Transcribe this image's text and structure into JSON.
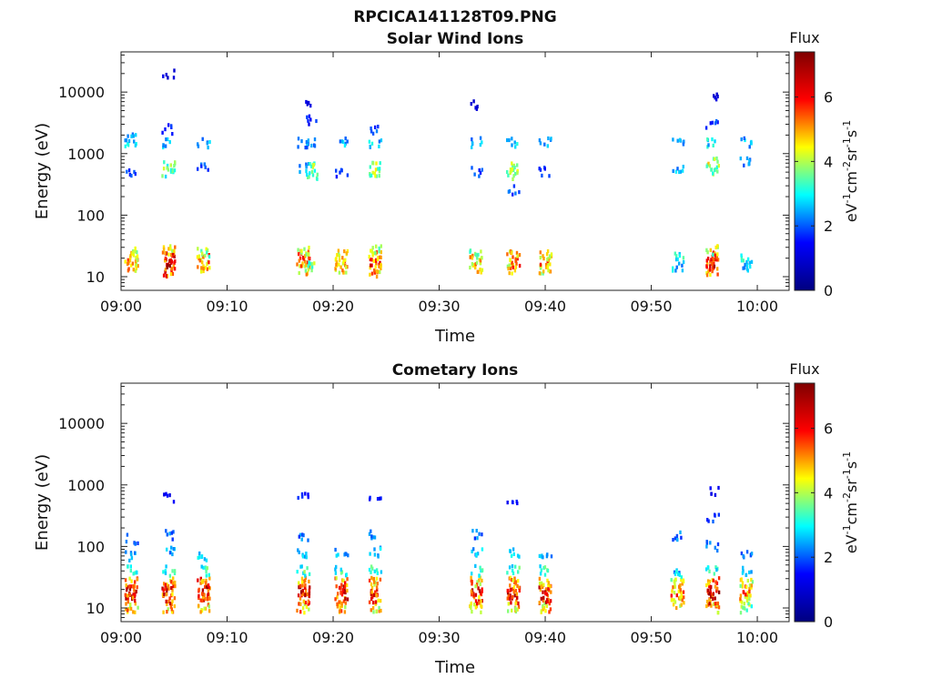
{
  "figure": {
    "filename": "RPCICA141128T09.PNG"
  },
  "colormap": {
    "type": "jet",
    "stops": [
      "#00007f",
      "#0000ff",
      "#00ffff",
      "#ffff00",
      "#ff0000",
      "#7f0000"
    ]
  },
  "chart_data": [
    {
      "type": "heatmap",
      "title": "Solar Wind Ions",
      "xlabel": "Time",
      "ylabel": "Energy (eV)",
      "y_scale": "log",
      "xlim": [
        "09:00",
        "10:03"
      ],
      "ylim": [
        6,
        45000
      ],
      "x_ticks": [
        "09:00",
        "09:10",
        "09:20",
        "09:30",
        "09:40",
        "09:50",
        "10:00"
      ],
      "y_ticks": [
        10,
        100,
        1000,
        10000
      ],
      "y_tick_labels": [
        "10",
        "100",
        "1000",
        "10000"
      ],
      "colorbar": {
        "title": "Flux",
        "label": "eV-1cm-2sr-1s-1",
        "range": [
          0,
          7.4
        ],
        "ticks": [
          0,
          2,
          4,
          6
        ],
        "tick_labels": [
          "0",
          "2",
          "4",
          "6"
        ]
      },
      "bursts": [
        {
          "t_min": 1.0,
          "e_low": [
            {
              "e": 14,
              "v": 5.4
            },
            {
              "e": 19,
              "v": 5.6
            },
            {
              "e": 24,
              "v": 5.0
            }
          ],
          "e_high": [
            {
              "e": 1400,
              "v": 3.2
            },
            {
              "e": 1800,
              "v": 2.6
            },
            {
              "e": 500,
              "v": 2.0
            }
          ]
        },
        {
          "t_min": 4.5,
          "e_low": [
            {
              "e": 12,
              "v": 6.2
            },
            {
              "e": 16,
              "v": 7.0
            },
            {
              "e": 21,
              "v": 6.6
            },
            {
              "e": 27,
              "v": 5.4
            }
          ],
          "e_high": [
            {
              "e": 500,
              "v": 3.6
            },
            {
              "e": 650,
              "v": 4.0
            },
            {
              "e": 1500,
              "v": 3.0
            },
            {
              "e": 2500,
              "v": 2.0
            },
            {
              "e": 20000,
              "v": 1.2
            }
          ]
        },
        {
          "t_min": 7.8,
          "e_low": [
            {
              "e": 14,
              "v": 5.2
            },
            {
              "e": 19,
              "v": 5.6
            },
            {
              "e": 24,
              "v": 4.6
            }
          ],
          "e_high": [
            {
              "e": 1500,
              "v": 2.8
            },
            {
              "e": 600,
              "v": 2.2
            }
          ]
        },
        {
          "t_min": 17.2,
          "e_low": [
            {
              "e": 13,
              "v": 5.2
            },
            {
              "e": 17,
              "v": 6.0
            },
            {
              "e": 22,
              "v": 5.6
            },
            {
              "e": 27,
              "v": 4.4
            }
          ],
          "e_high": [
            {
              "e": 1500,
              "v": 2.8
            },
            {
              "e": 600,
              "v": 2.4
            }
          ]
        },
        {
          "t_min": 18.0,
          "e_low": [
            {
              "e": 15,
              "v": 4.2
            }
          ],
          "e_high": [
            {
              "e": 450,
              "v": 4.0
            },
            {
              "e": 600,
              "v": 4.2
            },
            {
              "e": 1500,
              "v": 2.6
            },
            {
              "e": 3500,
              "v": 1.8
            },
            {
              "e": 6500,
              "v": 1.2
            }
          ]
        },
        {
          "t_min": 20.8,
          "e_low": [
            {
              "e": 13,
              "v": 5.2
            },
            {
              "e": 17,
              "v": 5.8
            },
            {
              "e": 22,
              "v": 5.0
            }
          ],
          "e_high": [
            {
              "e": 1500,
              "v": 2.8
            },
            {
              "e": 500,
              "v": 2.0
            }
          ]
        },
        {
          "t_min": 24.0,
          "e_low": [
            {
              "e": 12,
              "v": 5.6
            },
            {
              "e": 16,
              "v": 6.4
            },
            {
              "e": 21,
              "v": 6.0
            },
            {
              "e": 27,
              "v": 4.6
            }
          ],
          "e_high": [
            {
              "e": 450,
              "v": 4.2
            },
            {
              "e": 600,
              "v": 4.4
            },
            {
              "e": 1500,
              "v": 3.0
            },
            {
              "e": 2500,
              "v": 2.2
            }
          ]
        },
        {
          "t_min": 33.5,
          "e_low": [
            {
              "e": 14,
              "v": 5.0
            },
            {
              "e": 19,
              "v": 5.4
            },
            {
              "e": 24,
              "v": 4.6
            }
          ],
          "e_high": [
            {
              "e": 1500,
              "v": 2.8
            },
            {
              "e": 500,
              "v": 2.0
            },
            {
              "e": 6000,
              "v": 1.2
            }
          ]
        },
        {
          "t_min": 37.0,
          "e_low": [
            {
              "e": 13,
              "v": 5.2
            },
            {
              "e": 17,
              "v": 6.2
            },
            {
              "e": 22,
              "v": 5.4
            }
          ],
          "e_high": [
            {
              "e": 450,
              "v": 4.2
            },
            {
              "e": 600,
              "v": 4.4
            },
            {
              "e": 1500,
              "v": 3.0
            },
            {
              "e": 250,
              "v": 2.2
            }
          ]
        },
        {
          "t_min": 40.0,
          "e_low": [
            {
              "e": 13,
              "v": 5.0
            },
            {
              "e": 17,
              "v": 5.8
            },
            {
              "e": 22,
              "v": 5.0
            }
          ],
          "e_high": [
            {
              "e": 1500,
              "v": 3.0
            },
            {
              "e": 500,
              "v": 2.0
            }
          ]
        },
        {
          "t_min": 52.5,
          "e_low": [
            {
              "e": 15,
              "v": 3.0
            },
            {
              "e": 20,
              "v": 3.4
            }
          ],
          "e_high": [
            {
              "e": 1500,
              "v": 3.0
            },
            {
              "e": 600,
              "v": 2.8
            }
          ]
        },
        {
          "t_min": 55.8,
          "e_low": [
            {
              "e": 12,
              "v": 6.0
            },
            {
              "e": 16,
              "v": 6.8
            },
            {
              "e": 21,
              "v": 6.2
            },
            {
              "e": 27,
              "v": 4.6
            }
          ],
          "e_high": [
            {
              "e": 550,
              "v": 4.2
            },
            {
              "e": 700,
              "v": 4.6
            },
            {
              "e": 1500,
              "v": 3.2
            },
            {
              "e": 3000,
              "v": 2.0
            },
            {
              "e": 8000,
              "v": 1.2
            }
          ]
        },
        {
          "t_min": 59.0,
          "e_low": [
            {
              "e": 15,
              "v": 3.0
            },
            {
              "e": 20,
              "v": 3.4
            }
          ],
          "e_high": [
            {
              "e": 1500,
              "v": 2.8
            },
            {
              "e": 700,
              "v": 2.6
            }
          ]
        }
      ]
    },
    {
      "type": "heatmap",
      "title": "Cometary Ions",
      "xlabel": "Time",
      "ylabel": "Energy (eV)",
      "y_scale": "log",
      "xlim": [
        "09:00",
        "10:03"
      ],
      "ylim": [
        6,
        45000
      ],
      "x_ticks": [
        "09:00",
        "09:10",
        "09:20",
        "09:30",
        "09:40",
        "09:50",
        "10:00"
      ],
      "y_ticks": [
        10,
        100,
        1000,
        10000
      ],
      "y_tick_labels": [
        "10",
        "100",
        "1000",
        "10000"
      ],
      "colorbar": {
        "title": "Flux",
        "label": "eV-1cm-2sr-1s-1",
        "range": [
          0,
          7.4
        ],
        "ticks": [
          0,
          2,
          4,
          6
        ],
        "tick_labels": [
          "0",
          "2",
          "4",
          "6"
        ]
      },
      "bursts": [
        {
          "t_min": 1.0,
          "e_low": [
            {
              "e": 10,
              "v": 5.4
            },
            {
              "e": 14,
              "v": 6.6
            },
            {
              "e": 19,
              "v": 6.8
            },
            {
              "e": 26,
              "v": 5.6
            },
            {
              "e": 40,
              "v": 3.6
            },
            {
              "e": 70,
              "v": 3.0
            },
            {
              "e": 130,
              "v": 2.4
            }
          ],
          "e_high": []
        },
        {
          "t_min": 4.5,
          "e_low": [
            {
              "e": 10,
              "v": 5.2
            },
            {
              "e": 14,
              "v": 6.4
            },
            {
              "e": 19,
              "v": 6.8
            },
            {
              "e": 26,
              "v": 5.8
            },
            {
              "e": 40,
              "v": 3.4
            },
            {
              "e": 80,
              "v": 2.8
            },
            {
              "e": 150,
              "v": 2.4
            }
          ],
          "e_high": [
            {
              "e": 600,
              "v": 1.6
            }
          ]
        },
        {
          "t_min": 7.8,
          "e_low": [
            {
              "e": 10,
              "v": 5.4
            },
            {
              "e": 14,
              "v": 6.6
            },
            {
              "e": 19,
              "v": 7.0
            },
            {
              "e": 26,
              "v": 6.0
            },
            {
              "e": 40,
              "v": 3.6
            },
            {
              "e": 70,
              "v": 3.0
            }
          ],
          "e_high": []
        },
        {
          "t_min": 17.2,
          "e_low": [
            {
              "e": 10,
              "v": 5.6
            },
            {
              "e": 14,
              "v": 6.8
            },
            {
              "e": 19,
              "v": 7.0
            },
            {
              "e": 26,
              "v": 5.8
            },
            {
              "e": 40,
              "v": 3.8
            },
            {
              "e": 80,
              "v": 3.0
            },
            {
              "e": 150,
              "v": 2.4
            }
          ],
          "e_high": [
            {
              "e": 600,
              "v": 1.8
            }
          ]
        },
        {
          "t_min": 20.8,
          "e_low": [
            {
              "e": 10,
              "v": 5.4
            },
            {
              "e": 14,
              "v": 6.6
            },
            {
              "e": 19,
              "v": 7.0
            },
            {
              "e": 26,
              "v": 5.8
            },
            {
              "e": 40,
              "v": 3.6
            },
            {
              "e": 80,
              "v": 2.8
            }
          ],
          "e_high": []
        },
        {
          "t_min": 24.0,
          "e_low": [
            {
              "e": 10,
              "v": 5.0
            },
            {
              "e": 14,
              "v": 6.2
            },
            {
              "e": 19,
              "v": 6.4
            },
            {
              "e": 26,
              "v": 5.4
            },
            {
              "e": 40,
              "v": 3.6
            },
            {
              "e": 80,
              "v": 3.0
            },
            {
              "e": 150,
              "v": 2.4
            }
          ],
          "e_high": [
            {
              "e": 600,
              "v": 1.6
            }
          ]
        },
        {
          "t_min": 33.5,
          "e_low": [
            {
              "e": 10,
              "v": 5.0
            },
            {
              "e": 14,
              "v": 6.2
            },
            {
              "e": 19,
              "v": 6.6
            },
            {
              "e": 26,
              "v": 5.4
            },
            {
              "e": 40,
              "v": 3.6
            },
            {
              "e": 80,
              "v": 3.0
            },
            {
              "e": 150,
              "v": 2.4
            }
          ],
          "e_high": []
        },
        {
          "t_min": 37.0,
          "e_low": [
            {
              "e": 10,
              "v": 5.2
            },
            {
              "e": 14,
              "v": 6.4
            },
            {
              "e": 19,
              "v": 6.8
            },
            {
              "e": 26,
              "v": 5.6
            },
            {
              "e": 40,
              "v": 3.6
            },
            {
              "e": 80,
              "v": 3.0
            }
          ],
          "e_high": [
            {
              "e": 600,
              "v": 1.6
            }
          ]
        },
        {
          "t_min": 40.0,
          "e_low": [
            {
              "e": 10,
              "v": 5.4
            },
            {
              "e": 14,
              "v": 6.6
            },
            {
              "e": 19,
              "v": 7.0
            },
            {
              "e": 26,
              "v": 5.8
            },
            {
              "e": 40,
              "v": 3.6
            },
            {
              "e": 80,
              "v": 3.0
            }
          ],
          "e_high": []
        },
        {
          "t_min": 52.5,
          "e_low": [
            {
              "e": 12,
              "v": 5.0
            },
            {
              "e": 16,
              "v": 5.8
            },
            {
              "e": 21,
              "v": 5.4
            },
            {
              "e": 27,
              "v": 4.4
            },
            {
              "e": 40,
              "v": 3.0
            },
            {
              "e": 150,
              "v": 2.4
            }
          ],
          "e_high": []
        },
        {
          "t_min": 55.8,
          "e_low": [
            {
              "e": 10,
              "v": 5.4
            },
            {
              "e": 14,
              "v": 6.6
            },
            {
              "e": 19,
              "v": 7.0
            },
            {
              "e": 26,
              "v": 5.8
            },
            {
              "e": 40,
              "v": 3.4
            },
            {
              "e": 100,
              "v": 2.6
            },
            {
              "e": 300,
              "v": 2.0
            }
          ],
          "e_high": [
            {
              "e": 750,
              "v": 1.6
            }
          ]
        },
        {
          "t_min": 59.0,
          "e_low": [
            {
              "e": 10,
              "v": 4.2
            },
            {
              "e": 14,
              "v": 5.4
            },
            {
              "e": 19,
              "v": 5.8
            },
            {
              "e": 26,
              "v": 5.0
            },
            {
              "e": 40,
              "v": 3.0
            },
            {
              "e": 70,
              "v": 2.6
            }
          ],
          "e_high": []
        }
      ]
    }
  ]
}
